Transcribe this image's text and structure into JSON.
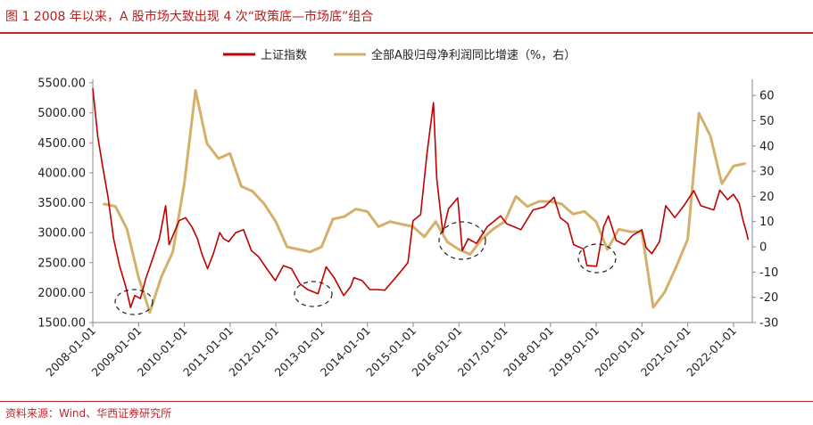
{
  "figure": {
    "title": "图 1 2008 年以来，A 股市场大致出现 4 次“政策底—市场底”组合",
    "source": "资料来源：Wind、华西证券研究所"
  },
  "colors": {
    "index_line": "#c00000",
    "profit_line": "#d4b06a",
    "title_red": "#b8201e",
    "rule_red": "#c0272d"
  },
  "chart_data": {
    "type": "line",
    "legend_position": "top-center",
    "grid": false,
    "x_tick_labels": [
      "2008-01-01",
      "2009-01-01",
      "2010-01-01",
      "2011-01-01",
      "2012-01-01",
      "2013-01-01",
      "2014-01-01",
      "2015-01-01",
      "2016-01-01",
      "2017-01-01",
      "2018-01-01",
      "2019-01-01",
      "2020-01-01",
      "2021-01-01",
      "2022-01-01"
    ],
    "xlim": [
      "2008-01-01",
      "2022-05-31"
    ],
    "left_axis": {
      "ylim": [
        1500,
        5500
      ],
      "tick_labels": [
        "1500.00",
        "2000.00",
        "2500.00",
        "3000.00",
        "3500.00",
        "4000.00",
        "4500.00",
        "5000.00",
        "5500.00"
      ],
      "tick_values": [
        1500,
        2000,
        2500,
        3000,
        3500,
        4000,
        4500,
        5000,
        5500
      ]
    },
    "right_axis": {
      "ylim": [
        -30,
        65
      ],
      "tick_labels": [
        "-30",
        "-20",
        "-10",
        "0",
        "10",
        "20",
        "30",
        "40",
        "50",
        "60"
      ],
      "tick_values": [
        -30,
        -20,
        -10,
        0,
        10,
        20,
        30,
        40,
        50,
        60
      ]
    },
    "series": [
      {
        "name": "上证指数",
        "axis": "left",
        "x": [
          "2008-01-01",
          "2008-02-10",
          "2008-03-20",
          "2008-05-01",
          "2008-06-15",
          "2008-08-01",
          "2008-09-20",
          "2008-10-28",
          "2008-12-01",
          "2009-01-15",
          "2009-03-01",
          "2009-04-20",
          "2009-06-15",
          "2009-08-04",
          "2009-09-01",
          "2009-11-20",
          "2010-01-10",
          "2010-03-01",
          "2010-04-15",
          "2010-05-20",
          "2010-07-05",
          "2010-08-20",
          "2010-10-10",
          "2010-11-10",
          "2010-12-20",
          "2011-02-15",
          "2011-04-18",
          "2011-06-20",
          "2011-08-15",
          "2011-10-20",
          "2011-12-28",
          "2012-03-01",
          "2012-05-05",
          "2012-07-10",
          "2012-09-10",
          "2012-12-03",
          "2013-02-06",
          "2013-04-10",
          "2013-06-25",
          "2013-08-20",
          "2013-09-15",
          "2013-11-20",
          "2014-01-20",
          "2014-03-20",
          "2014-05-20",
          "2014-07-25",
          "2014-09-15",
          "2014-11-20",
          "2014-12-31",
          "2015-03-01",
          "2015-04-20",
          "2015-06-12",
          "2015-07-08",
          "2015-08-26",
          "2015-10-10",
          "2015-12-23",
          "2016-01-28",
          "2016-03-15",
          "2016-05-20",
          "2016-08-15",
          "2016-11-29",
          "2017-01-15",
          "2017-05-10",
          "2017-08-15",
          "2017-11-13",
          "2018-01-29",
          "2018-03-20",
          "2018-05-20",
          "2018-07-05",
          "2018-09-20",
          "2018-10-19",
          "2019-01-04",
          "2019-03-01",
          "2019-04-08",
          "2019-06-10",
          "2019-08-15",
          "2019-10-15",
          "2019-12-31",
          "2020-02-03",
          "2020-03-20",
          "2020-05-20",
          "2020-07-09",
          "2020-09-20",
          "2020-12-01",
          "2021-02-18",
          "2021-04-15",
          "2021-07-27",
          "2021-09-14",
          "2021-11-15",
          "2021-12-31",
          "2022-02-15",
          "2022-03-15",
          "2022-04-15",
          "2022-04-27"
        ],
        "values": [
          5400,
          4600,
          4100,
          3600,
          2900,
          2450,
          2100,
          1750,
          1950,
          1900,
          2250,
          2550,
          2900,
          3450,
          2800,
          3200,
          3250,
          3100,
          2900,
          2650,
          2400,
          2650,
          3000,
          2900,
          2850,
          3000,
          3050,
          2700,
          2600,
          2400,
          2200,
          2450,
          2400,
          2150,
          2050,
          1980,
          2430,
          2250,
          1950,
          2100,
          2250,
          2200,
          2050,
          2050,
          2040,
          2200,
          2330,
          2500,
          3200,
          3300,
          4300,
          5170,
          3900,
          3000,
          3400,
          3580,
          2700,
          2900,
          2820,
          3100,
          3280,
          3150,
          3050,
          3380,
          3430,
          3590,
          3250,
          3150,
          2800,
          2730,
          2450,
          2440,
          3100,
          3280,
          2870,
          2800,
          2950,
          3050,
          2750,
          2650,
          2850,
          3450,
          3250,
          3450,
          3700,
          3450,
          3380,
          3710,
          3550,
          3640,
          3490,
          3230,
          3000,
          2890
        ]
      },
      {
        "name": "全部A股归母净利润同比增速（%，右）",
        "axis": "right",
        "x": [
          "2008-03-31",
          "2008-06-30",
          "2008-09-30",
          "2008-12-31",
          "2009-03-31",
          "2009-06-30",
          "2009-09-30",
          "2009-12-31",
          "2010-03-31",
          "2010-06-30",
          "2010-09-30",
          "2010-12-31",
          "2011-03-31",
          "2011-06-30",
          "2011-09-30",
          "2011-12-31",
          "2012-03-31",
          "2012-06-30",
          "2012-09-30",
          "2012-12-31",
          "2013-03-31",
          "2013-06-30",
          "2013-09-30",
          "2013-12-31",
          "2014-03-31",
          "2014-06-30",
          "2014-09-30",
          "2014-12-31",
          "2015-03-31",
          "2015-06-30",
          "2015-09-30",
          "2015-12-31",
          "2016-03-31",
          "2016-06-30",
          "2016-09-30",
          "2016-12-31",
          "2017-03-31",
          "2017-06-30",
          "2017-09-30",
          "2017-12-31",
          "2018-03-31",
          "2018-06-30",
          "2018-09-30",
          "2018-12-31",
          "2019-03-31",
          "2019-06-30",
          "2019-09-30",
          "2019-12-31",
          "2020-03-31",
          "2020-06-30",
          "2020-09-30",
          "2020-12-31",
          "2021-03-31",
          "2021-06-30",
          "2021-09-30",
          "2021-12-31",
          "2022-03-31"
        ],
        "values": [
          17,
          16,
          7,
          -12,
          -26,
          -12,
          -2,
          25,
          62,
          41,
          35,
          37,
          24,
          22,
          17,
          10,
          0,
          -1,
          -2,
          0,
          11,
          12,
          15,
          14,
          8,
          10,
          9,
          8,
          4,
          10,
          2,
          -1,
          -3,
          3,
          7,
          10,
          20,
          16,
          18,
          18,
          17,
          13,
          14,
          10,
          -1,
          7,
          6,
          6,
          -24,
          -18,
          -8,
          3,
          53,
          44,
          25,
          32,
          33
        ]
      }
    ]
  }
}
